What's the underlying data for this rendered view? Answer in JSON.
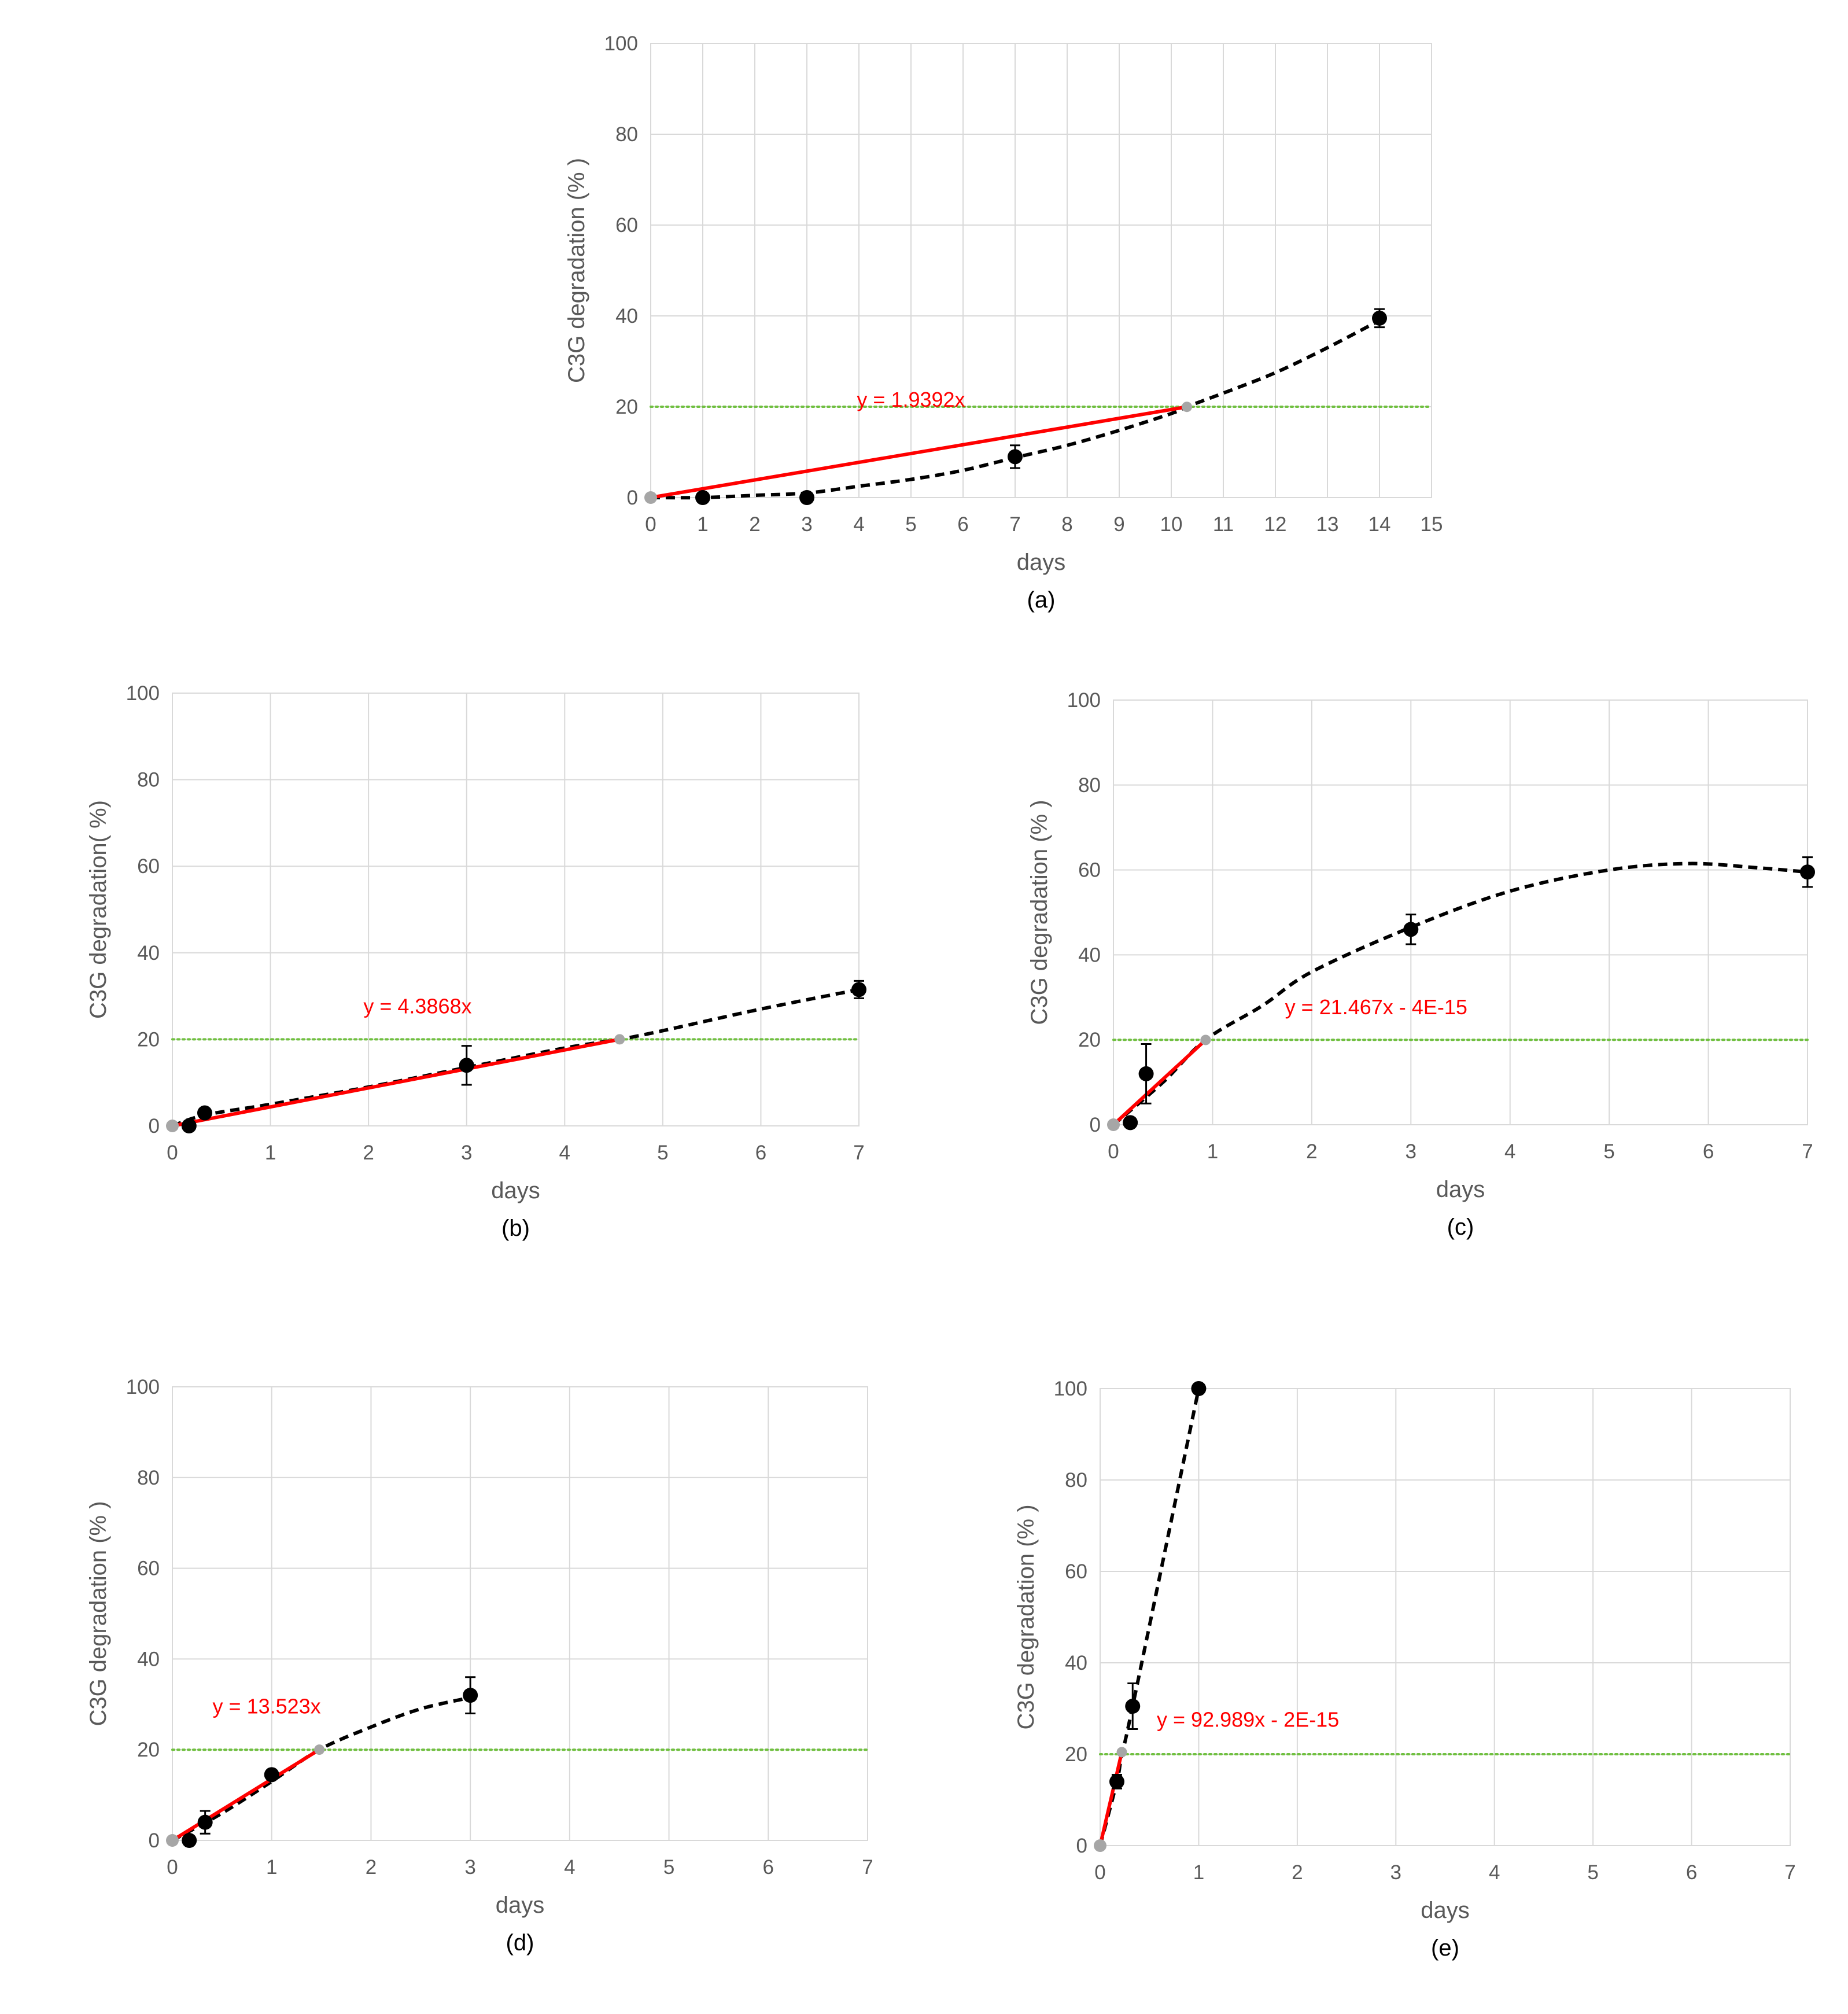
{
  "chart_data": [
    {
      "type": "scatter",
      "panel_label": "(a)",
      "xlabel": "days",
      "ylabel": "C3G degradation (% )",
      "xlim": [
        0,
        15
      ],
      "ylim": [
        0,
        100
      ],
      "xticks": [
        0,
        1,
        2,
        3,
        4,
        5,
        6,
        7,
        8,
        9,
        10,
        11,
        12,
        13,
        14,
        15
      ],
      "yticks": [
        0,
        20,
        40,
        60,
        80,
        100
      ],
      "grid": true,
      "threshold": 20,
      "points": [
        {
          "x": 0,
          "y": 0,
          "err": 0
        },
        {
          "x": 1,
          "y": 0,
          "err": 0
        },
        {
          "x": 3,
          "y": 0,
          "err": 0
        },
        {
          "x": 7,
          "y": 9,
          "err": 2.5
        },
        {
          "x": 14,
          "y": 39.5,
          "err": 2
        }
      ],
      "trend_curve": [
        [
          0,
          0
        ],
        [
          1,
          0
        ],
        [
          2,
          0.5
        ],
        [
          3,
          1
        ],
        [
          4,
          2.5
        ],
        [
          5,
          4
        ],
        [
          6,
          6
        ],
        [
          7,
          8.8
        ],
        [
          8,
          11.5
        ],
        [
          9,
          14.8
        ],
        [
          10,
          18.5
        ],
        [
          10.3,
          20
        ],
        [
          11,
          23
        ],
        [
          12,
          27.5
        ],
        [
          13,
          33
        ],
        [
          14,
          39
        ]
      ],
      "fit_line": {
        "x0": 0,
        "x1": 10.3,
        "slope": 1.9392
      },
      "fit_label": "y = 1.9392x",
      "fit_label_pos": [
        5,
        20
      ]
    },
    {
      "type": "scatter",
      "panel_label": "(b)",
      "xlabel": "days",
      "ylabel": "C3G degradation( %)",
      "xlim": [
        0,
        7
      ],
      "ylim": [
        0,
        100
      ],
      "xticks": [
        0,
        1,
        2,
        3,
        4,
        5,
        6,
        7
      ],
      "yticks": [
        0,
        20,
        40,
        60,
        80,
        100
      ],
      "grid": true,
      "threshold": 20,
      "points": [
        {
          "x": 0,
          "y": 0,
          "err": 0
        },
        {
          "x": 0.17,
          "y": 0,
          "err": 0
        },
        {
          "x": 0.33,
          "y": 3,
          "err": 0
        },
        {
          "x": 3,
          "y": 14,
          "err": 4.5
        },
        {
          "x": 7,
          "y": 31.5,
          "err": 2
        }
      ],
      "trend_curve": [
        [
          0,
          0
        ],
        [
          0.33,
          2.5
        ],
        [
          1,
          5
        ],
        [
          2,
          9
        ],
        [
          3,
          13.5
        ],
        [
          4,
          18
        ],
        [
          4.56,
          20
        ],
        [
          5,
          22
        ],
        [
          6,
          27
        ],
        [
          7,
          31.5
        ]
      ],
      "fit_line": {
        "x0": 0,
        "x1": 4.56,
        "slope": 4.3868
      },
      "fit_label": "y = 4.3868x",
      "fit_label_pos": [
        2.5,
        26
      ]
    },
    {
      "type": "scatter",
      "panel_label": "(c)",
      "xlabel": "days",
      "ylabel": "C3G degradation (% )",
      "xlim": [
        0,
        7
      ],
      "ylim": [
        0,
        100
      ],
      "xticks": [
        0,
        1,
        2,
        3,
        4,
        5,
        6,
        7
      ],
      "yticks": [
        0,
        20,
        40,
        60,
        80,
        100
      ],
      "grid": true,
      "threshold": 20,
      "points": [
        {
          "x": 0,
          "y": 0,
          "err": 0
        },
        {
          "x": 0.17,
          "y": 0.5,
          "err": 0
        },
        {
          "x": 0.33,
          "y": 12,
          "err": 7
        },
        {
          "x": 3,
          "y": 46,
          "err": 3.5
        },
        {
          "x": 7,
          "y": 59.5,
          "err": 3.5
        }
      ],
      "trend_curve": [
        [
          0,
          0
        ],
        [
          0.5,
          10
        ],
        [
          0.93,
          20
        ],
        [
          1.5,
          28
        ],
        [
          2,
          36
        ],
        [
          3,
          46.5
        ],
        [
          4,
          55
        ],
        [
          5,
          60
        ],
        [
          5.8,
          61.5
        ],
        [
          6.5,
          60.5
        ],
        [
          7,
          59.5
        ]
      ],
      "fit_line": {
        "x0": 0,
        "x1": 0.93,
        "slope": 21.467
      },
      "fit_label": "y = 21.467x - 4E-15",
      "fit_label_pos": [
        2.65,
        26
      ]
    },
    {
      "type": "scatter",
      "panel_label": "(d)",
      "xlabel": "days",
      "ylabel": "C3G degradation (% )",
      "xlim": [
        0,
        7
      ],
      "ylim": [
        0,
        100
      ],
      "xticks": [
        0,
        1,
        2,
        3,
        4,
        5,
        6,
        7
      ],
      "yticks": [
        0,
        20,
        40,
        60,
        80,
        100
      ],
      "grid": true,
      "threshold": 20,
      "points": [
        {
          "x": 0,
          "y": 0,
          "err": 0
        },
        {
          "x": 0.17,
          "y": 0,
          "err": 0
        },
        {
          "x": 0.33,
          "y": 4,
          "err": 2.5
        },
        {
          "x": 1,
          "y": 14.5,
          "err": 0
        },
        {
          "x": 3,
          "y": 32,
          "err": 4
        }
      ],
      "trend_curve": [
        [
          0,
          0
        ],
        [
          0.5,
          6
        ],
        [
          1,
          13
        ],
        [
          1.48,
          20
        ],
        [
          2,
          25
        ],
        [
          2.5,
          29
        ],
        [
          3,
          31.5
        ]
      ],
      "fit_line": {
        "x0": 0,
        "x1": 1.48,
        "slope": 13.523
      },
      "fit_label": "y = 13.523x",
      "fit_label_pos": [
        0.95,
        28
      ]
    },
    {
      "type": "scatter",
      "panel_label": "(e)",
      "xlabel": "days",
      "ylabel": "C3G degradation (% )",
      "xlim": [
        0,
        7
      ],
      "ylim": [
        0,
        100
      ],
      "xticks": [
        0,
        1,
        2,
        3,
        4,
        5,
        6,
        7
      ],
      "yticks": [
        0,
        20,
        40,
        60,
        80,
        100
      ],
      "grid": true,
      "threshold": 20,
      "points": [
        {
          "x": 0,
          "y": 0,
          "err": 0
        },
        {
          "x": 0.17,
          "y": 14,
          "err": 1.5
        },
        {
          "x": 0.33,
          "y": 30.5,
          "err": 5
        },
        {
          "x": 1,
          "y": 100,
          "err": 0
        }
      ],
      "trend_curve": [
        [
          0,
          0
        ],
        [
          0.17,
          14
        ],
        [
          0.22,
          20
        ],
        [
          0.33,
          30.5
        ],
        [
          1,
          100
        ]
      ],
      "fit_line": {
        "x0": 0,
        "x1": 0.22,
        "slope": 92.989
      },
      "fit_label": "y = 92.989x - 2E-15",
      "fit_label_pos": [
        1.5,
        26
      ]
    }
  ]
}
